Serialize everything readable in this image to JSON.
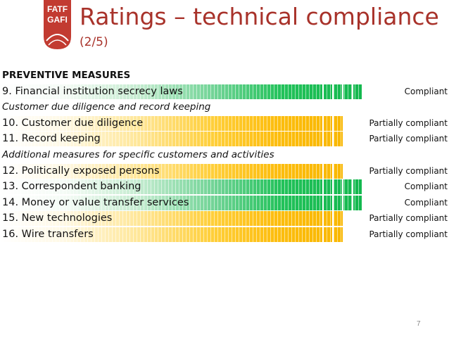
{
  "logo": {
    "line1": "FATF",
    "line2": "GAFI",
    "color": "#c23b31"
  },
  "title": "Ratings – technical compliance",
  "subtitle": "(2/5)",
  "rows": [
    {
      "label": "PREVENTIVE MEASURES",
      "kind": "section"
    },
    {
      "label": "9. Financial institution secrecy laws",
      "kind": "item",
      "rating": "Compliant",
      "status": "compliant"
    },
    {
      "label": "Customer due diligence and record keeping",
      "kind": "subsection"
    },
    {
      "label": "10. Customer due diligence",
      "kind": "item",
      "rating": "Partially compliant",
      "status": "partial"
    },
    {
      "label": "11. Record keeping",
      "kind": "item",
      "rating": "Partially compliant",
      "status": "partial"
    },
    {
      "label": "Additional measures for specific customers and activities",
      "kind": "subsection"
    },
    {
      "label": "12. Politically exposed persons",
      "kind": "item",
      "rating": "Partially compliant",
      "status": "partial"
    },
    {
      "label": "13. Correspondent banking",
      "kind": "item",
      "rating": "Compliant",
      "status": "compliant"
    },
    {
      "label": "14. Money or value transfer services",
      "kind": "item",
      "rating": "Compliant",
      "status": "compliant"
    },
    {
      "label": "15. New technologies",
      "kind": "item",
      "rating": "Partially compliant",
      "status": "partial"
    },
    {
      "label": "16. Wire transfers",
      "kind": "item",
      "rating": "Partially compliant",
      "status": "partial"
    }
  ],
  "colors": {
    "title": "#a8322a",
    "compliant": "#13b84e",
    "partial": "#f9b700"
  },
  "page_number": "7"
}
